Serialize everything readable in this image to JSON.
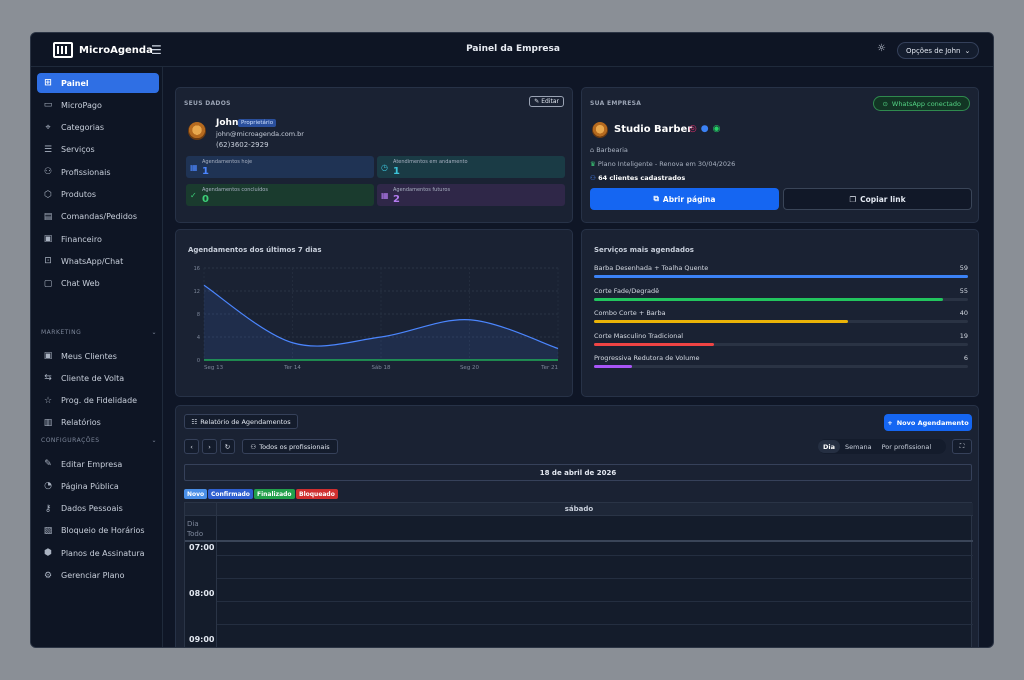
{
  "app": {
    "logo_text": "MicroAgenda",
    "page_title": "Painel da Empresa",
    "user_menu_label": "Opções de John"
  },
  "sidebar": {
    "items": [
      {
        "label": "Painel",
        "icon": "grid-icon",
        "active": true
      },
      {
        "label": "MicroPago",
        "icon": "wallet-icon"
      },
      {
        "label": "Categorias",
        "icon": "tag-icon"
      },
      {
        "label": "Serviços",
        "icon": "clipboard-icon"
      },
      {
        "label": "Profissionais",
        "icon": "users-icon"
      },
      {
        "label": "Produtos",
        "icon": "box-icon"
      },
      {
        "label": "Comandas/Pedidos",
        "icon": "receipt-icon"
      },
      {
        "label": "Financeiro",
        "icon": "money-icon"
      },
      {
        "label": "WhatsApp/Chat",
        "icon": "qrcode-icon"
      },
      {
        "label": "Chat Web",
        "icon": "chat-icon"
      }
    ],
    "marketing_title": "MARKETING",
    "marketing_items": [
      {
        "label": "Meus Clientes",
        "icon": "contact-icon"
      },
      {
        "label": "Cliente de Volta",
        "icon": "return-icon"
      },
      {
        "label": "Prog. de Fidelidade",
        "icon": "star-icon"
      },
      {
        "label": "Relatórios",
        "icon": "bar-chart-icon"
      }
    ],
    "config_title": "CONFIGURAÇÕES",
    "config_items": [
      {
        "label": "Editar Empresa",
        "icon": "edit-icon"
      },
      {
        "label": "Página Pública",
        "icon": "palette-icon"
      },
      {
        "label": "Dados Pessoais",
        "icon": "user-key-icon"
      },
      {
        "label": "Bloqueio de Horários",
        "icon": "calendar-block-icon"
      },
      {
        "label": "Planos de Assinatura",
        "icon": "package-icon"
      },
      {
        "label": "Gerenciar Plano",
        "icon": "gear-icon"
      }
    ]
  },
  "seus_dados": {
    "title": "SEUS DADOS",
    "edit_label": "Editar",
    "name": "John",
    "role_badge": "Proprietário",
    "email": "john@microagenda.com.br",
    "phone": "(62)3602-2929",
    "stats": [
      {
        "label": "Agendamentos hoje",
        "value": "1",
        "color": "#4b86ff",
        "bg": "#1f3354"
      },
      {
        "label": "Atendimentos em andamento",
        "value": "1",
        "color": "#3cc3d9",
        "bg": "#1a3b45"
      },
      {
        "label": "Agendamentos concluídos",
        "value": "0",
        "color": "#3ccf78",
        "bg": "#1a3b2e"
      },
      {
        "label": "Agendamentos futuros",
        "value": "2",
        "color": "#b47cf0",
        "bg": "#2f2748"
      }
    ]
  },
  "sua_empresa": {
    "title": "SUA EMPRESA",
    "whatsapp_label": "WhatsApp conectado",
    "business_name": "Studio Barber",
    "category": "Barbearia",
    "plan": "Plano Inteligente - Renova em 30/04/2026",
    "clients": "64 clientes cadastrados",
    "open_label": "Abrir página",
    "copy_label": "Copiar link"
  },
  "chart_data": {
    "type": "line",
    "title": "Agendamentos dos últimos 7 dias",
    "x": [
      "Seg 13",
      "Ter 14",
      "Sáb 18",
      "Seg 20",
      "Ter 21"
    ],
    "ylim": [
      0,
      16
    ],
    "yticks": [
      "0",
      "4",
      "8",
      "12",
      "16"
    ],
    "series": [
      {
        "values": [
          13,
          3,
          4,
          7,
          2
        ],
        "color": "#4b86ff"
      },
      {
        "values": [
          0,
          0,
          0,
          0,
          0
        ],
        "color": "#22c55e"
      }
    ],
    "grid": true
  },
  "services": {
    "title": "Serviços mais agendados",
    "items": [
      {
        "name": "Barba Desenhada + Toalha Quente",
        "value": 59,
        "color": "#3b82f6"
      },
      {
        "name": "Corte Fade/Degradê",
        "value": 55,
        "color": "#22c55e"
      },
      {
        "name": "Combo Corte + Barba",
        "value": 40,
        "color": "#eab308"
      },
      {
        "name": "Corte Masculino Tradicional",
        "value": 19,
        "color": "#ef4444"
      },
      {
        "name": "Progressiva Redutora de Volume",
        "value": 6,
        "color": "#a855f7"
      }
    ]
  },
  "calendar": {
    "report_label": "Relatório de Agendamentos",
    "new_label": "Novo Agendamento",
    "prof_label": "Todos os profissionais",
    "views": [
      "Dia",
      "Semana",
      "Por profissional"
    ],
    "date_label": "18 de abril de 2026",
    "legend": [
      {
        "label": "Novo",
        "color": "#4a8fe7"
      },
      {
        "label": "Confirmado",
        "color": "#2f5fd0"
      },
      {
        "label": "Finalizado",
        "color": "#22a04b"
      },
      {
        "label": "Bloqueado",
        "color": "#d02f2f"
      }
    ],
    "day_header": "sábado",
    "allday_label": "Dia Todo",
    "times": [
      "07:00",
      "08:00",
      "09:00"
    ]
  }
}
